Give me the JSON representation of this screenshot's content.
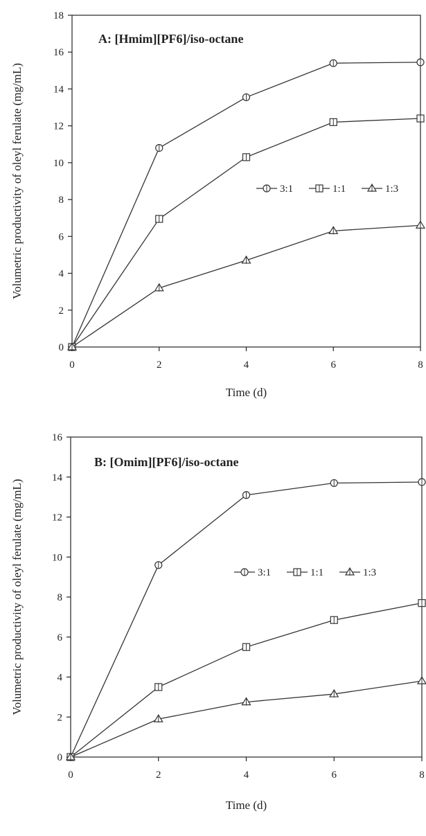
{
  "chart_data": [
    {
      "type": "line",
      "title": "A: [Hmim][PF6]/iso-octane",
      "xlabel": "Time (d)",
      "ylabel": "Volumetric productivity of oleyl ferulate (mg/mL)",
      "x": [
        0,
        2,
        4,
        6,
        8
      ],
      "xlim": [
        0,
        8
      ],
      "ylim": [
        0,
        18
      ],
      "xticks": [
        0,
        2,
        4,
        6,
        8
      ],
      "yticks": [
        0,
        2,
        4,
        6,
        8,
        10,
        12,
        14,
        16,
        18
      ],
      "grid": false,
      "legend_position": "center-right",
      "series": [
        {
          "name": "3:1",
          "marker": "circle",
          "values": [
            0,
            10.8,
            13.55,
            15.4,
            15.45
          ]
        },
        {
          "name": "1:1",
          "marker": "square",
          "values": [
            0,
            6.95,
            10.3,
            12.2,
            12.4
          ]
        },
        {
          "name": "1:3",
          "marker": "triangle",
          "values": [
            0,
            3.2,
            4.7,
            6.3,
            6.6
          ]
        }
      ]
    },
    {
      "type": "line",
      "title": "B: [Omim][PF6]/iso-octane",
      "xlabel": "Time (d)",
      "ylabel": "Volumetric productivity of oleyl ferulate (mg/mL)",
      "x": [
        0,
        2,
        4,
        6,
        8
      ],
      "xlim": [
        0,
        8
      ],
      "ylim": [
        0,
        16
      ],
      "xticks": [
        0,
        2,
        4,
        6,
        8
      ],
      "yticks": [
        0,
        2,
        4,
        6,
        8,
        10,
        12,
        14,
        16
      ],
      "grid": false,
      "legend_position": "center-right",
      "series": [
        {
          "name": "3:1",
          "marker": "circle",
          "values": [
            0,
            9.6,
            13.1,
            13.7,
            13.75
          ]
        },
        {
          "name": "1:1",
          "marker": "square",
          "values": [
            0,
            3.5,
            5.5,
            6.85,
            7.7
          ]
        },
        {
          "name": "1:3",
          "marker": "triangle",
          "values": [
            0,
            1.9,
            2.75,
            3.15,
            3.8
          ]
        }
      ]
    }
  ],
  "colors": {
    "line": "#333333",
    "axis": "#222222"
  }
}
